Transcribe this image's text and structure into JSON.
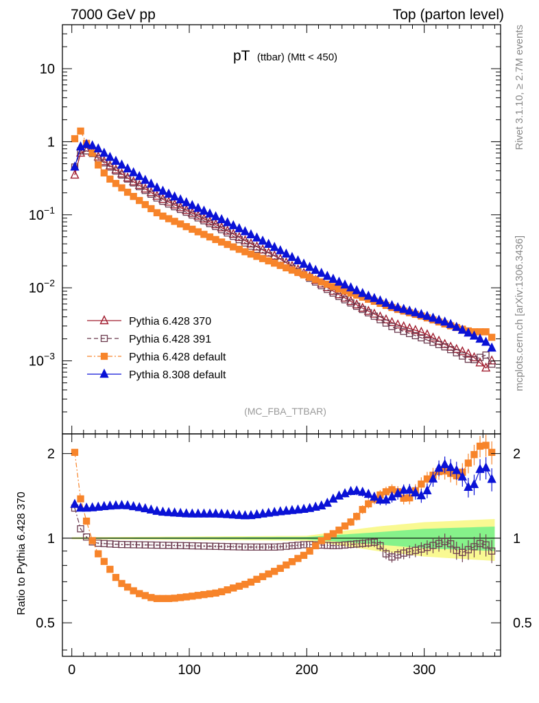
{
  "header": {
    "left": "7000 GeV pp",
    "right": "Top (parton level)"
  },
  "side_text": {
    "rivet": "Rivet 3.1.10, ≥ 2.7M events",
    "mcplots": "mcplots.cern.ch [arXiv:1306.3436]"
  },
  "chart_data": [
    {
      "panel": "main",
      "type": "scatter",
      "title_main": "pT",
      "title_sub": "(ttbar) (Mtt < 450)",
      "analysis_label": "(MC_FBA_TTBAR)",
      "xlabel": "",
      "ylabel": "",
      "xlim": [
        -8,
        365
      ],
      "ylim": [
        0.0001,
        40
      ],
      "yscale": "log",
      "xticks": [
        0,
        100,
        200,
        300
      ],
      "yticks": [
        {
          "value": 10,
          "label": "10"
        },
        {
          "value": 1,
          "label": "1"
        },
        {
          "value": 0.1,
          "base": "10",
          "exp": "−1"
        },
        {
          "value": 0.01,
          "base": "10",
          "exp": "−2"
        },
        {
          "value": 0.001,
          "base": "10",
          "exp": "−3"
        }
      ],
      "legend_position": "lower-left",
      "series": [
        {
          "name": "Pythia 6.428 370",
          "color": "#a01c2e",
          "marker": "open-triangle",
          "line": "solid",
          "anchors": [
            [
              2.5,
              0.35
            ],
            [
              7.5,
              0.7
            ],
            [
              12.5,
              0.75
            ],
            [
              17.5,
              0.72
            ],
            [
              22.5,
              0.62
            ],
            [
              30,
              0.5
            ],
            [
              50,
              0.3
            ],
            [
              75,
              0.17
            ],
            [
              100,
              0.11
            ],
            [
              125,
              0.07
            ],
            [
              150,
              0.042
            ],
            [
              175,
              0.026
            ],
            [
              200,
              0.015
            ],
            [
              225,
              0.0085
            ],
            [
              250,
              0.005
            ],
            [
              275,
              0.0032
            ],
            [
              300,
              0.0024
            ],
            [
              320,
              0.0016
            ],
            [
              340,
              0.0012
            ],
            [
              352.5,
              0.0008
            ],
            [
              357.5,
              0.001
            ]
          ]
        },
        {
          "name": "Pythia 6.428 391",
          "color": "#6b3a4e",
          "marker": "open-square",
          "line": "dashed",
          "anchors": [
            [
              2.5,
              0.45
            ],
            [
              7.5,
              0.75
            ],
            [
              12.5,
              0.75
            ],
            [
              17.5,
              0.69
            ],
            [
              22.5,
              0.59
            ],
            [
              30,
              0.48
            ],
            [
              50,
              0.29
            ],
            [
              75,
              0.16
            ],
            [
              100,
              0.104
            ],
            [
              125,
              0.066
            ],
            [
              150,
              0.039
            ],
            [
              175,
              0.024
            ],
            [
              200,
              0.0143
            ],
            [
              225,
              0.008
            ],
            [
              250,
              0.0048
            ],
            [
              275,
              0.0028
            ],
            [
              300,
              0.002
            ],
            [
              320,
              0.0015
            ],
            [
              340,
              0.001
            ],
            [
              352.5,
              0.0012
            ],
            [
              357.5,
              0.0009
            ]
          ]
        },
        {
          "name": "Pythia 6.428 default",
          "color": "#f7842a",
          "marker": "filled-square",
          "line": "dashdot",
          "anchors": [
            [
              2.5,
              1.1
            ],
            [
              7.5,
              1.4
            ],
            [
              12.5,
              0.95
            ],
            [
              17.5,
              0.7
            ],
            [
              22.5,
              0.48
            ],
            [
              30,
              0.33
            ],
            [
              50,
              0.19
            ],
            [
              75,
              0.1
            ],
            [
              100,
              0.066
            ],
            [
              125,
              0.044
            ],
            [
              150,
              0.03
            ],
            [
              175,
              0.021
            ],
            [
              200,
              0.0145
            ],
            [
              225,
              0.01
            ],
            [
              250,
              0.0072
            ],
            [
              275,
              0.0052
            ],
            [
              300,
              0.004
            ],
            [
              320,
              0.0031
            ],
            [
              340,
              0.0025
            ],
            [
              352.5,
              0.0025
            ],
            [
              357.5,
              0.0021
            ]
          ]
        },
        {
          "name": "Pythia 8.308 default",
          "color": "#0a12d6",
          "marker": "filled-triangle",
          "line": "solid",
          "anchors": [
            [
              2.5,
              0.45
            ],
            [
              7.5,
              0.85
            ],
            [
              12.5,
              0.92
            ],
            [
              17.5,
              0.88
            ],
            [
              22.5,
              0.8
            ],
            [
              30,
              0.65
            ],
            [
              50,
              0.4
            ],
            [
              75,
              0.22
            ],
            [
              100,
              0.14
            ],
            [
              125,
              0.09
            ],
            [
              150,
              0.056
            ],
            [
              175,
              0.034
            ],
            [
              200,
              0.02
            ],
            [
              225,
              0.0125
            ],
            [
              250,
              0.008
            ],
            [
              275,
              0.0055
            ],
            [
              300,
              0.0042
            ],
            [
              320,
              0.0033
            ],
            [
              340,
              0.0023
            ],
            [
              352.5,
              0.0018
            ],
            [
              357.5,
              0.0015
            ]
          ]
        }
      ]
    },
    {
      "panel": "ratio",
      "type": "scatter",
      "ylabel": "Ratio to Pythia 6.428 370",
      "xlim": [
        -8,
        365
      ],
      "ylim": [
        0.38,
        2.35
      ],
      "yscale": "log",
      "xticks": [
        0,
        100,
        200,
        300
      ],
      "yticks": [
        {
          "value": 2,
          "label": "2"
        },
        {
          "value": 1,
          "label": "1"
        },
        {
          "value": 0.5,
          "label": "0.5"
        }
      ],
      "reference_band": {
        "inner_color": "#86f28a",
        "outer_color": "#f9f992",
        "inner_halfwidth": [
          [
            0,
            0.004
          ],
          [
            200,
            0.01
          ],
          [
            260,
            0.05
          ],
          [
            300,
            0.08
          ],
          [
            360,
            0.1
          ]
        ],
        "outer_halfwidth": [
          [
            0,
            0.008
          ],
          [
            200,
            0.02
          ],
          [
            260,
            0.1
          ],
          [
            300,
            0.14
          ],
          [
            360,
            0.17
          ]
        ]
      },
      "series": [
        {
          "name": "Pythia 6.428 391",
          "color": "#6b3a4e",
          "marker": "open-square",
          "anchors": [
            [
              2.5,
              1.28
            ],
            [
              7.5,
              1.08
            ],
            [
              12.5,
              1.01
            ],
            [
              17.5,
              0.97
            ],
            [
              22.5,
              0.96
            ],
            [
              40,
              0.95
            ],
            [
              100,
              0.94
            ],
            [
              150,
              0.93
            ],
            [
              175,
              0.93
            ],
            [
              200,
              0.95
            ],
            [
              225,
              0.94
            ],
            [
              250,
              0.96
            ],
            [
              260,
              0.97
            ],
            [
              270,
              0.85
            ],
            [
              280,
              0.88
            ],
            [
              290,
              0.9
            ],
            [
              300,
              0.92
            ],
            [
              310,
              0.95
            ],
            [
              320,
              0.98
            ],
            [
              330,
              0.88
            ],
            [
              340,
              0.92
            ],
            [
              350,
              0.97
            ],
            [
              357.5,
              0.9
            ]
          ]
        },
        {
          "name": "Pythia 6.428 default",
          "color": "#f7842a",
          "marker": "filled-square",
          "anchors": [
            [
              2.5,
              2.02
            ],
            [
              7.5,
              1.38
            ],
            [
              12.5,
              1.15
            ],
            [
              17.5,
              0.98
            ],
            [
              22.5,
              0.88
            ],
            [
              30,
              0.8
            ],
            [
              40,
              0.7
            ],
            [
              55,
              0.64
            ],
            [
              70,
              0.61
            ],
            [
              85,
              0.61
            ],
            [
              100,
              0.62
            ],
            [
              125,
              0.64
            ],
            [
              150,
              0.69
            ],
            [
              175,
              0.77
            ],
            [
              200,
              0.88
            ],
            [
              215,
              1.0
            ],
            [
              225,
              1.05
            ],
            [
              240,
              1.16
            ],
            [
              250,
              1.3
            ],
            [
              265,
              1.45
            ],
            [
              275,
              1.5
            ],
            [
              285,
              1.35
            ],
            [
              300,
              1.6
            ],
            [
              315,
              1.75
            ],
            [
              330,
              1.65
            ],
            [
              345,
              2.05
            ],
            [
              350,
              2.2
            ],
            [
              357.5,
              2.02
            ]
          ]
        },
        {
          "name": "Pythia 8.308 default",
          "color": "#0a12d6",
          "marker": "filled-triangle",
          "anchors": [
            [
              2.5,
              1.32
            ],
            [
              7.5,
              1.28
            ],
            [
              15,
              1.28
            ],
            [
              30,
              1.3
            ],
            [
              45,
              1.31
            ],
            [
              60,
              1.28
            ],
            [
              75,
              1.24
            ],
            [
              100,
              1.22
            ],
            [
              125,
              1.22
            ],
            [
              150,
              1.2
            ],
            [
              175,
              1.24
            ],
            [
              200,
              1.27
            ],
            [
              215,
              1.31
            ],
            [
              225,
              1.4
            ],
            [
              240,
              1.48
            ],
            [
              250,
              1.45
            ],
            [
              265,
              1.35
            ],
            [
              275,
              1.42
            ],
            [
              285,
              1.5
            ],
            [
              300,
              1.4
            ],
            [
              315,
              1.85
            ],
            [
              330,
              1.72
            ],
            [
              340,
              1.45
            ],
            [
              350,
              1.86
            ],
            [
              357.5,
              1.62
            ]
          ]
        }
      ]
    }
  ]
}
